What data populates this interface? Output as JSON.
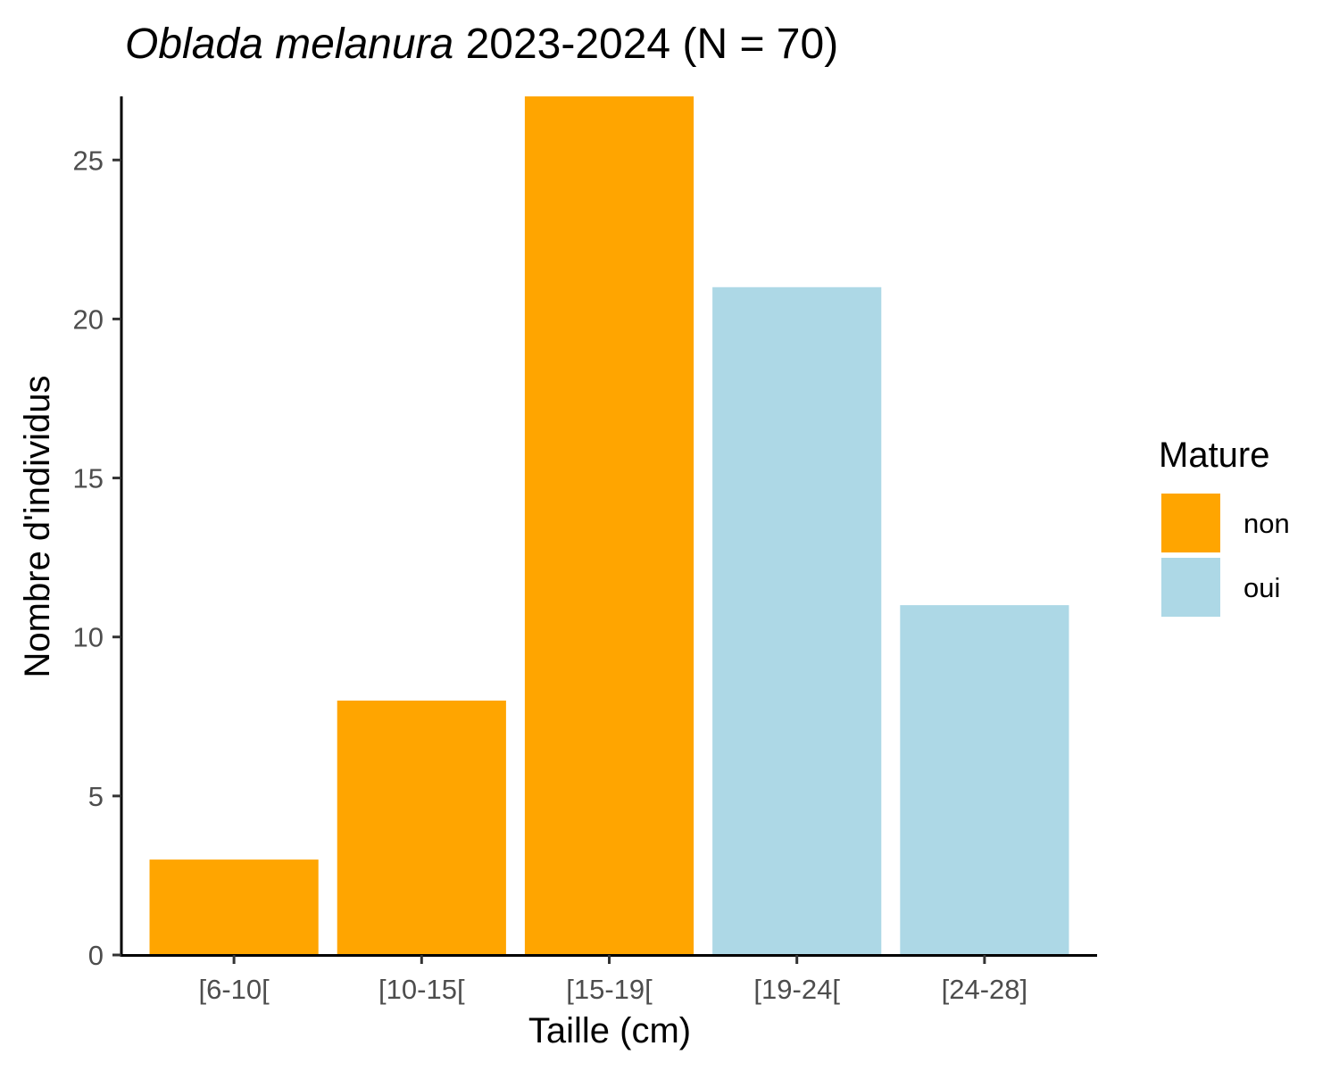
{
  "chart_data": {
    "type": "bar",
    "title_italic": "Oblada melanura",
    "title_rest": " 2023-2024 (N = 70)",
    "xlabel": "Taille (cm)",
    "ylabel": "Nombre d'individus",
    "categories": [
      "[6-10[",
      "[10-15[",
      "[15-19[",
      "[19-24[",
      "[24-28]"
    ],
    "values": [
      3,
      8,
      27,
      21,
      11
    ],
    "fill_group": [
      "non",
      "non",
      "non",
      "oui",
      "oui"
    ],
    "ylim": [
      0,
      27
    ],
    "yticks": [
      0,
      5,
      10,
      15,
      20,
      25
    ],
    "grid": false,
    "legend": {
      "title": "Mature",
      "placement": "right",
      "entries": [
        {
          "label": "non",
          "color": "#FFA500"
        },
        {
          "label": "oui",
          "color": "#ADD8E6"
        }
      ]
    }
  }
}
